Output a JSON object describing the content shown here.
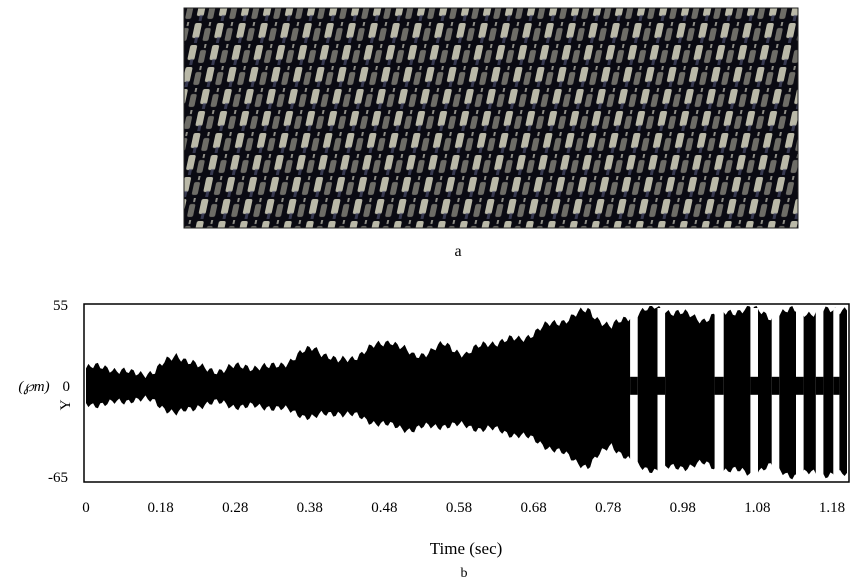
{
  "panels": {
    "a": {
      "label": "a"
    },
    "b": {
      "label": "b"
    }
  },
  "chart_data": {
    "type": "area",
    "xlabel": "Time (sec)",
    "ylabel_prefix": "Y",
    "ylabel_unit": "(℘m)",
    "ylim": [
      -65,
      55
    ],
    "y_tick_labels": [
      "55",
      "0",
      "-65"
    ],
    "y_tick_values": [
      55,
      0,
      -65
    ],
    "x_tick_labels": [
      "0",
      "0.18",
      "0.28",
      "0.38",
      "0.48",
      "0.58",
      "0.68",
      "0.78",
      "0.98",
      "1.08",
      "1.18"
    ],
    "grid": false,
    "series": [
      {
        "color": "#000000",
        "envelope": [
          {
            "pos": 0.0,
            "upper": 12,
            "lower": -12
          },
          {
            "pos": 0.03,
            "upper": 13,
            "lower": -13
          },
          {
            "pos": 0.06,
            "upper": 8,
            "lower": -9
          },
          {
            "pos": 0.09,
            "upper": 10,
            "lower": -11
          },
          {
            "pos": 0.12,
            "upper": 22,
            "lower": -20
          },
          {
            "pos": 0.15,
            "upper": 12,
            "lower": -13
          },
          {
            "pos": 0.18,
            "upper": 11,
            "lower": -12
          },
          {
            "pos": 0.21,
            "upper": 14,
            "lower": -15
          },
          {
            "pos": 0.24,
            "upper": 12,
            "lower": -14
          },
          {
            "pos": 0.27,
            "upper": 18,
            "lower": -18
          },
          {
            "pos": 0.3,
            "upper": 27,
            "lower": -22
          },
          {
            "pos": 0.33,
            "upper": 16,
            "lower": -18
          },
          {
            "pos": 0.36,
            "upper": 22,
            "lower": -22
          },
          {
            "pos": 0.4,
            "upper": 32,
            "lower": -28
          },
          {
            "pos": 0.43,
            "upper": 20,
            "lower": -30
          },
          {
            "pos": 0.47,
            "upper": 28,
            "lower": -27
          },
          {
            "pos": 0.5,
            "upper": 22,
            "lower": -28
          },
          {
            "pos": 0.53,
            "upper": 30,
            "lower": -30
          },
          {
            "pos": 0.57,
            "upper": 32,
            "lower": -34
          },
          {
            "pos": 0.6,
            "upper": 40,
            "lower": -40
          },
          {
            "pos": 0.63,
            "upper": 46,
            "lower": -48
          },
          {
            "pos": 0.66,
            "upper": 52,
            "lower": -56
          },
          {
            "pos": 0.69,
            "upper": 40,
            "lower": -40
          },
          {
            "pos": 0.72,
            "upper": 50,
            "lower": -55
          },
          {
            "pos": 0.75,
            "upper": 54,
            "lower": -58
          },
          {
            "pos": 0.78,
            "upper": 50,
            "lower": -56
          },
          {
            "pos": 0.81,
            "upper": 46,
            "lower": -54
          },
          {
            "pos": 0.84,
            "upper": 50,
            "lower": -58
          },
          {
            "pos": 0.87,
            "upper": 54,
            "lower": -60
          },
          {
            "pos": 0.9,
            "upper": 48,
            "lower": -56
          },
          {
            "pos": 0.93,
            "upper": 52,
            "lower": -62
          },
          {
            "pos": 0.96,
            "upper": 50,
            "lower": -60
          },
          {
            "pos": 1.0,
            "upper": 54,
            "lower": -62
          }
        ],
        "gaps": [
          {
            "pos": 0.72,
            "width": 0.01
          },
          {
            "pos": 0.756,
            "width": 0.01
          },
          {
            "pos": 0.832,
            "width": 0.012
          },
          {
            "pos": 0.878,
            "width": 0.01
          },
          {
            "pos": 0.906,
            "width": 0.01
          },
          {
            "pos": 0.938,
            "width": 0.01
          },
          {
            "pos": 0.964,
            "width": 0.01
          },
          {
            "pos": 0.986,
            "width": 0.008
          }
        ]
      }
    ]
  }
}
